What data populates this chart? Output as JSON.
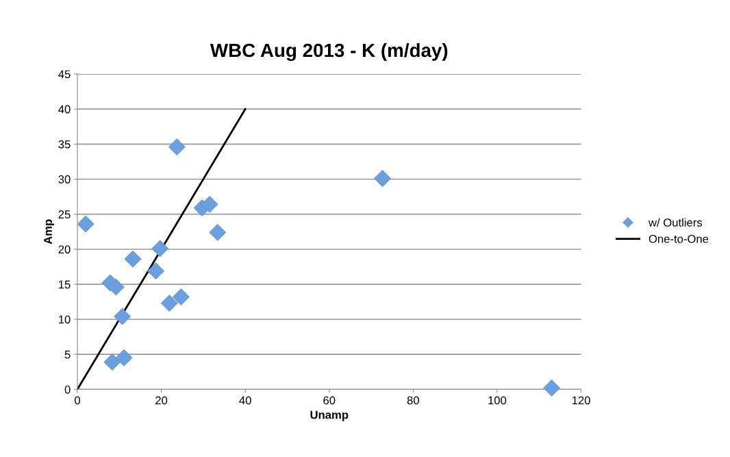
{
  "chart_data": {
    "type": "scatter",
    "title": "WBC Aug 2013 - K (m/day)",
    "xlabel": "Unamp",
    "ylabel": "Amp",
    "xlim": [
      0,
      120
    ],
    "xticks": [
      0,
      20,
      40,
      60,
      80,
      100,
      120
    ],
    "ylim": [
      0,
      45
    ],
    "yticks": [
      0,
      5,
      10,
      15,
      20,
      25,
      30,
      35,
      40,
      45
    ],
    "grid": "y",
    "legend": "right",
    "series": [
      {
        "name": "w/ Outliers",
        "marker": "diamond",
        "color": "#6a9fe0",
        "x": [
          2.0,
          23.7,
          29.7,
          31.5,
          33.4,
          19.7,
          13.2,
          18.7,
          7.8,
          9.2,
          24.7,
          21.9,
          10.7,
          8.3,
          11.1,
          72.7,
          113.0
        ],
        "values": [
          23.6,
          34.6,
          25.9,
          26.4,
          22.4,
          20.1,
          18.6,
          16.9,
          15.2,
          14.6,
          13.2,
          12.3,
          10.4,
          3.9,
          4.5,
          30.1,
          0.2
        ]
      },
      {
        "name": "One-to-One",
        "type": "line",
        "marker": "none",
        "color": "#000000",
        "x": [
          0,
          40
        ],
        "values": [
          0,
          40
        ]
      }
    ]
  }
}
